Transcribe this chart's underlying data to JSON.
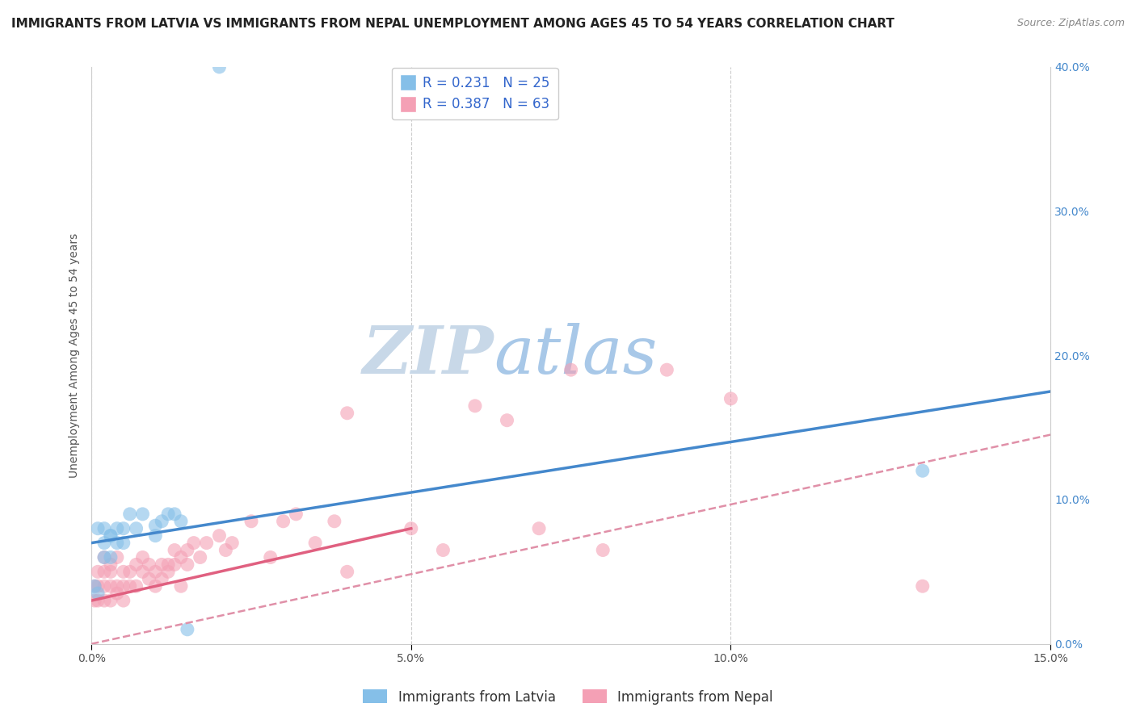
{
  "title": "IMMIGRANTS FROM LATVIA VS IMMIGRANTS FROM NEPAL UNEMPLOYMENT AMONG AGES 45 TO 54 YEARS CORRELATION CHART",
  "source": "Source: ZipAtlas.com",
  "ylabel": "Unemployment Among Ages 45 to 54 years",
  "xlim": [
    0.0,
    0.15
  ],
  "ylim": [
    0.0,
    0.4
  ],
  "xticks": [
    0.0,
    0.05,
    0.1,
    0.15
  ],
  "yticks": [
    0.0,
    0.1,
    0.2,
    0.3,
    0.4
  ],
  "latvia_R": 0.231,
  "latvia_N": 25,
  "nepal_R": 0.387,
  "nepal_N": 63,
  "latvia_color": "#85bfe8",
  "nepal_color": "#f4a0b5",
  "latvia_line_color": "#4488cc",
  "nepal_line_color": "#e06080",
  "nepal_dash_color": "#e090a8",
  "background_color": "#ffffff",
  "watermark_ZIP": "ZIP",
  "watermark_atlas": "atlas",
  "watermark_ZIP_color": "#c8d8e8",
  "watermark_atlas_color": "#a8c8e8",
  "legend_label_latvia": "Immigrants from Latvia",
  "legend_label_nepal": "Immigrants from Nepal",
  "latvia_x": [
    0.0005,
    0.001,
    0.001,
    0.002,
    0.002,
    0.002,
    0.003,
    0.003,
    0.003,
    0.004,
    0.004,
    0.005,
    0.005,
    0.006,
    0.007,
    0.008,
    0.01,
    0.01,
    0.011,
    0.012,
    0.013,
    0.014,
    0.015,
    0.02,
    0.13
  ],
  "latvia_y": [
    0.04,
    0.035,
    0.08,
    0.06,
    0.07,
    0.08,
    0.06,
    0.075,
    0.075,
    0.07,
    0.08,
    0.07,
    0.08,
    0.09,
    0.08,
    0.09,
    0.075,
    0.082,
    0.085,
    0.09,
    0.09,
    0.085,
    0.01,
    0.4,
    0.12
  ],
  "nepal_x": [
    0.0005,
    0.001,
    0.001,
    0.001,
    0.002,
    0.002,
    0.002,
    0.002,
    0.003,
    0.003,
    0.003,
    0.003,
    0.004,
    0.004,
    0.004,
    0.005,
    0.005,
    0.005,
    0.006,
    0.006,
    0.007,
    0.007,
    0.008,
    0.008,
    0.009,
    0.009,
    0.01,
    0.01,
    0.011,
    0.011,
    0.012,
    0.012,
    0.013,
    0.013,
    0.014,
    0.014,
    0.015,
    0.015,
    0.016,
    0.017,
    0.018,
    0.02,
    0.021,
    0.022,
    0.025,
    0.028,
    0.03,
    0.032,
    0.035,
    0.038,
    0.04,
    0.04,
    0.05,
    0.055,
    0.06,
    0.065,
    0.07,
    0.075,
    0.08,
    0.09,
    0.1,
    0.13,
    0.0005
  ],
  "nepal_y": [
    0.04,
    0.03,
    0.04,
    0.05,
    0.03,
    0.04,
    0.05,
    0.06,
    0.03,
    0.04,
    0.05,
    0.055,
    0.035,
    0.04,
    0.06,
    0.03,
    0.04,
    0.05,
    0.04,
    0.05,
    0.04,
    0.055,
    0.05,
    0.06,
    0.045,
    0.055,
    0.04,
    0.05,
    0.045,
    0.055,
    0.05,
    0.055,
    0.055,
    0.065,
    0.04,
    0.06,
    0.055,
    0.065,
    0.07,
    0.06,
    0.07,
    0.075,
    0.065,
    0.07,
    0.085,
    0.06,
    0.085,
    0.09,
    0.07,
    0.085,
    0.05,
    0.16,
    0.08,
    0.065,
    0.165,
    0.155,
    0.08,
    0.19,
    0.065,
    0.19,
    0.17,
    0.04,
    0.03
  ],
  "title_fontsize": 11,
  "axis_label_fontsize": 10,
  "tick_fontsize": 10,
  "legend_fontsize": 12,
  "latvia_trend": [
    0.07,
    0.175
  ],
  "nepal_trend_solid": [
    0.03,
    0.08
  ],
  "nepal_trend_dashed": [
    0.0,
    0.145
  ]
}
